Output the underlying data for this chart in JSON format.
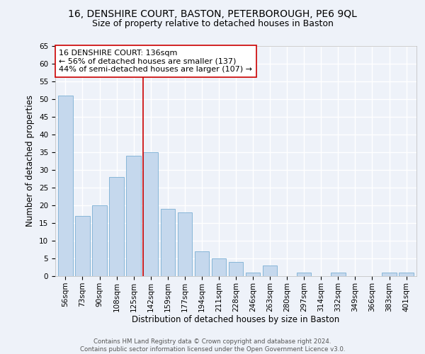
{
  "title": "16, DENSHIRE COURT, BASTON, PETERBOROUGH, PE6 9QL",
  "subtitle": "Size of property relative to detached houses in Baston",
  "xlabel": "Distribution of detached houses by size in Baston",
  "ylabel": "Number of detached properties",
  "categories": [
    "56sqm",
    "73sqm",
    "90sqm",
    "108sqm",
    "125sqm",
    "142sqm",
    "159sqm",
    "177sqm",
    "194sqm",
    "211sqm",
    "228sqm",
    "246sqm",
    "263sqm",
    "280sqm",
    "297sqm",
    "314sqm",
    "332sqm",
    "349sqm",
    "366sqm",
    "383sqm",
    "401sqm"
  ],
  "values": [
    51,
    17,
    20,
    28,
    34,
    35,
    19,
    18,
    7,
    5,
    4,
    1,
    3,
    0,
    1,
    0,
    1,
    0,
    0,
    1,
    1
  ],
  "bar_color": "#c5d8ed",
  "bar_edge_color": "#7aafd4",
  "property_line_x": 4.57,
  "property_line_color": "#cc0000",
  "annotation_text": "16 DENSHIRE COURT: 136sqm\n← 56% of detached houses are smaller (137)\n44% of semi-detached houses are larger (107) →",
  "annotation_box_color": "#ffffff",
  "annotation_box_edge_color": "#cc0000",
  "ylim": [
    0,
    65
  ],
  "yticks": [
    0,
    5,
    10,
    15,
    20,
    25,
    30,
    35,
    40,
    45,
    50,
    55,
    60,
    65
  ],
  "footnote": "Contains HM Land Registry data © Crown copyright and database right 2024.\nContains public sector information licensed under the Open Government Licence v3.0.",
  "bg_color": "#eef2f9",
  "grid_color": "#ffffff",
  "title_fontsize": 10,
  "subtitle_fontsize": 9,
  "xlabel_fontsize": 8.5,
  "ylabel_fontsize": 8.5,
  "tick_fontsize": 7.5,
  "annotation_fontsize": 8
}
